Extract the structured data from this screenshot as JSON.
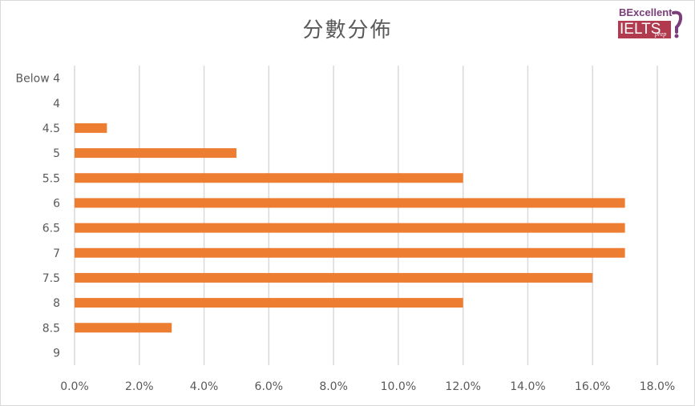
{
  "chart_data": {
    "type": "bar",
    "orientation": "horizontal",
    "title": "分數分佈",
    "categories": [
      "Below 4",
      "4",
      "4.5",
      "5",
      "5.5",
      "6",
      "6.5",
      "7",
      "7.5",
      "8",
      "8.5",
      "9"
    ],
    "values": [
      0,
      0,
      1.0,
      5.0,
      12.0,
      17.0,
      17.0,
      17.0,
      16.0,
      12.0,
      3.0,
      0
    ],
    "xlim": [
      0,
      18
    ],
    "x_ticks": [
      "0.0%",
      "2.0%",
      "4.0%",
      "6.0%",
      "8.0%",
      "10.0%",
      "12.0%",
      "14.0%",
      "16.0%",
      "18.0%"
    ],
    "grid": "vertical",
    "legend": "none",
    "bar_color": "#ed7d31",
    "grid_color": "#d9d9d9"
  },
  "logo": {
    "top_text": "BExcellent",
    "main_text": "IELTS",
    "sub_text": "prep"
  }
}
